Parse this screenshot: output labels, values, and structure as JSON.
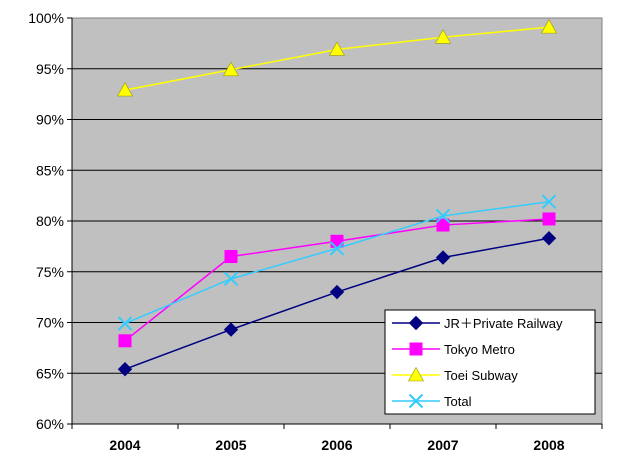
{
  "chart_data": {
    "type": "line",
    "title": "",
    "xlabel": "",
    "ylabel": "",
    "categories": [
      "2004",
      "2005",
      "2006",
      "2007",
      "2008"
    ],
    "ylim": [
      60,
      100
    ],
    "yticks": [
      "60%",
      "65%",
      "70%",
      "75%",
      "80%",
      "85%",
      "90%",
      "95%",
      "100%"
    ],
    "grid": "horizontal",
    "legend_position": "bottom-right",
    "plot_background": "#c0c0c0",
    "series": [
      {
        "name": "JR＋Private Railway",
        "values": [
          65.4,
          69.3,
          73.0,
          76.4,
          78.3
        ],
        "color": "#000080",
        "marker": "diamond"
      },
      {
        "name": "Tokyo Metro",
        "values": [
          68.2,
          76.5,
          78.0,
          79.6,
          80.2
        ],
        "color": "#ff00ff",
        "marker": "square"
      },
      {
        "name": "Toei Subway",
        "values": [
          92.9,
          94.9,
          96.9,
          98.1,
          99.1
        ],
        "color": "#ffff00",
        "marker": "triangle"
      },
      {
        "name": "Total",
        "values": [
          69.9,
          74.3,
          77.3,
          80.5,
          81.9
        ],
        "color": "#33ccff",
        "marker": "x"
      }
    ]
  }
}
